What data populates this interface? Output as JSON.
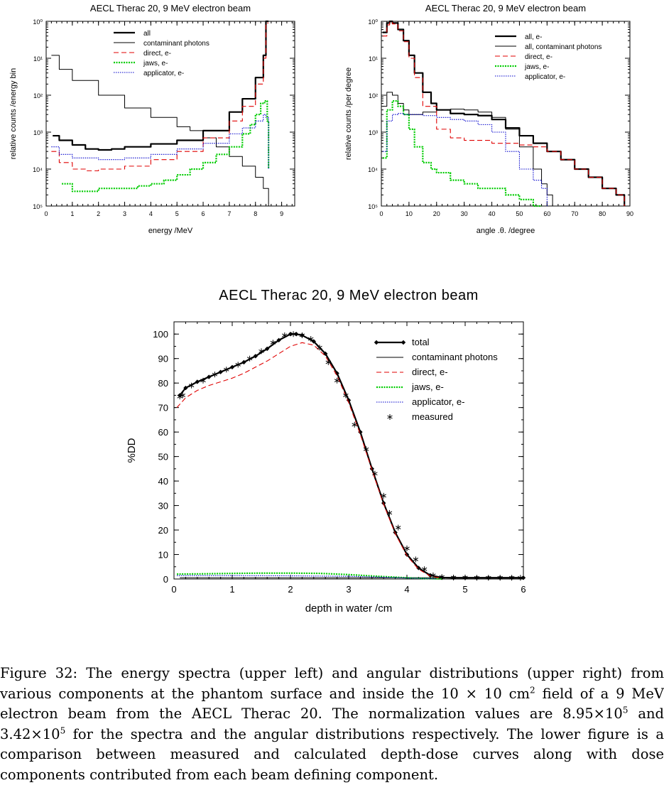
{
  "caption": {
    "label": "Figure 32:",
    "p1": "The energy spectra (upper left) and angular distributions (upper right) from various components at the phantom surface and inside the 10 × 10 cm",
    "p1_sup": "2",
    "p2": " field of a 9 MeV electron beam from the AECL Therac 20. The normalization values are 8.95×10",
    "p2_sup": "5",
    "p3": " and 3.42×10",
    "p3_sup": "5",
    "p4": " for the spectra and the angular distributions respectively. The lower figure is a comparison between measured and calculated depth-dose curves along with dose components contributed from each beam defining component."
  },
  "colors": {
    "all": "#000000",
    "contaminant": "#000000",
    "direct": "#e00000",
    "jaws": "#00cc00",
    "applicator": "#0000cc"
  },
  "chart_data": [
    {
      "type": "line",
      "title": "AECL Therac 20,  9 MeV electron beam",
      "xlabel": "energy /MeV",
      "ylabel": "relative counts /energy bin",
      "xlim": [
        0,
        9.5
      ],
      "ylim": [
        1e-05,
        1
      ],
      "yscale": "log",
      "xticks": [
        "0",
        "1",
        "2",
        "3",
        "4",
        "5",
        "6",
        "7",
        "8",
        "9"
      ],
      "yticks": [
        "10⁰",
        "10¹",
        "10²",
        "10³",
        "10⁴",
        "10⁵"
      ],
      "legend": {
        "placement": "top-right"
      },
      "series": [
        {
          "name": "all",
          "key": "all",
          "x": [
            0.25,
            0.5,
            1,
            1.5,
            2,
            2.5,
            3,
            4,
            5,
            6,
            7,
            7.5,
            8,
            8.3,
            8.4,
            8.5
          ],
          "y": [
            0.0008,
            0.0006,
            0.00045,
            0.00035,
            0.00033,
            0.00035,
            0.0004,
            0.00048,
            0.0006,
            0.0011,
            0.0035,
            0.008,
            0.03,
            0.12,
            1,
            1
          ]
        },
        {
          "name": "contaminant photons",
          "key": "contaminant",
          "x": [
            0.2,
            0.5,
            1,
            2,
            3,
            4,
            5,
            5.5,
            6,
            6.5,
            7,
            7.5,
            8,
            8.3,
            8.5
          ],
          "y": [
            0.12,
            0.05,
            0.025,
            0.01,
            0.0045,
            0.0025,
            0.0014,
            0.0011,
            0.0007,
            0.0004,
            0.00022,
            0.00012,
            6e-05,
            3e-05,
            1e-05
          ]
        },
        {
          "name": "direct, e-",
          "key": "direct",
          "x": [
            0.2,
            0.5,
            1,
            1.5,
            2,
            3,
            4,
            5,
            6,
            7,
            7.5,
            8,
            8.3,
            8.4,
            8.5
          ],
          "y": [
            0.0003,
            0.00015,
            0.0001,
            9e-05,
            0.0001,
            0.00012,
            0.00018,
            0.0003,
            0.0007,
            0.002,
            0.005,
            0.02,
            0.1,
            0.9,
            0.9
          ]
        },
        {
          "name": "jaws, e-",
          "key": "jaws",
          "x": [
            0.6,
            1,
            1.5,
            2,
            2.5,
            3,
            3.5,
            4,
            4.5,
            5,
            5.5,
            6,
            6.5,
            7,
            7.5,
            7.8,
            8,
            8.2,
            8.35,
            8.45,
            8.5
          ],
          "y": [
            4e-05,
            2.5e-05,
            2.5e-05,
            3e-05,
            3e-05,
            3e-05,
            3.5e-05,
            4e-05,
            5e-05,
            7e-05,
            0.0001,
            0.00015,
            0.00025,
            0.0004,
            0.0009,
            0.0016,
            0.003,
            0.006,
            0.007,
            0.002,
            0.0001
          ]
        },
        {
          "name": "applicator, e-",
          "key": "applicator",
          "x": [
            0.2,
            0.5,
            1,
            2,
            3,
            4,
            5,
            6,
            7,
            7.5,
            8,
            8.3,
            8.4,
            8.5
          ],
          "y": [
            0.0004,
            0.00025,
            0.0002,
            0.00018,
            0.0002,
            0.00025,
            0.00035,
            0.0005,
            0.0009,
            0.0013,
            0.002,
            0.003,
            0.0025,
            0.0001
          ]
        }
      ]
    },
    {
      "type": "line",
      "title": "AECL Therac 20, 9 MeV electron beam",
      "xlabel": "angle .θ. /degree",
      "ylabel": "relative counts /per degree",
      "xlim": [
        0,
        90
      ],
      "ylim": [
        1e-05,
        1
      ],
      "yscale": "log",
      "xticks": [
        "0",
        "10",
        "20",
        "30",
        "40",
        "50",
        "60",
        "70",
        "80",
        "90"
      ],
      "yticks": [
        "10⁰",
        "10¹",
        "10²",
        "10³",
        "10⁴",
        "10⁵"
      ],
      "legend": {
        "placement": "top-right"
      },
      "series": [
        {
          "name": "all, e-",
          "key": "all",
          "x": [
            0.5,
            2,
            3,
            4,
            6,
            8,
            10,
            12,
            15,
            18,
            20,
            25,
            30,
            35,
            40,
            45,
            50,
            55,
            60,
            65,
            70,
            75,
            80,
            85,
            88
          ],
          "y": [
            0.5,
            0.9,
            1,
            0.9,
            0.6,
            0.3,
            0.12,
            0.04,
            0.012,
            0.006,
            0.004,
            0.0032,
            0.003,
            0.0028,
            0.0022,
            0.0013,
            0.0008,
            0.0005,
            0.0003,
            0.00018,
            0.0001,
            6e-05,
            3e-05,
            2e-05,
            1e-05
          ]
        },
        {
          "name": "all, contaminant photons",
          "key": "contaminant",
          "x": [
            0.5,
            2,
            4,
            6,
            8,
            10,
            15,
            20,
            25,
            30,
            35,
            40,
            45,
            50,
            55,
            58,
            60,
            62
          ],
          "y": [
            0.005,
            0.012,
            0.01,
            0.006,
            0.004,
            0.003,
            0.0035,
            0.004,
            0.0042,
            0.004,
            0.0035,
            0.0025,
            0.0012,
            0.0004,
            0.0001,
            4e-05,
            2e-05,
            1e-05
          ]
        },
        {
          "name": "direct, e-",
          "key": "direct",
          "x": [
            0.5,
            2,
            3,
            4,
            6,
            8,
            10,
            12,
            15,
            20,
            25,
            30,
            40,
            50,
            55,
            60,
            65,
            70,
            75,
            80,
            85,
            88
          ],
          "y": [
            0.4,
            0.8,
            0.95,
            0.85,
            0.55,
            0.28,
            0.1,
            0.03,
            0.005,
            0.0012,
            0.0007,
            0.0006,
            0.0005,
            0.00045,
            0.0004,
            0.0003,
            0.00018,
            0.0001,
            6e-05,
            3e-05,
            2e-05,
            1e-05
          ]
        },
        {
          "name": "jaws, e-",
          "key": "jaws",
          "x": [
            0.5,
            2,
            4,
            6,
            8,
            10,
            12,
            15,
            18,
            20,
            25,
            30,
            35,
            40,
            45,
            50,
            55,
            58
          ],
          "y": [
            0.0002,
            0.004,
            0.007,
            0.005,
            0.003,
            0.0012,
            0.0004,
            0.00015,
            0.0001,
            8e-05,
            5e-05,
            4e-05,
            3e-05,
            3e-05,
            2e-05,
            1.5e-05,
            1e-05,
            1e-05
          ]
        },
        {
          "name": "applicator, e-",
          "key": "applicator",
          "x": [
            0.5,
            2,
            4,
            6,
            8,
            10,
            15,
            20,
            25,
            30,
            35,
            40,
            45,
            50,
            55,
            58,
            60
          ],
          "y": [
            0.0003,
            0.002,
            0.003,
            0.0032,
            0.003,
            0.003,
            0.0028,
            0.0025,
            0.0022,
            0.002,
            0.0016,
            0.001,
            0.0003,
            0.0001,
            5e-05,
            3e-05,
            1e-05
          ]
        }
      ]
    },
    {
      "type": "line",
      "title": "AECL Therac 20, 9 MeV electron beam",
      "xlabel": "depth in water /cm",
      "ylabel": "%DD",
      "xlim": [
        0,
        6
      ],
      "ylim": [
        0,
        105
      ],
      "xticks": [
        "0",
        "1",
        "2",
        "3",
        "4",
        "5",
        "6"
      ],
      "yticks": [
        "0",
        "10",
        "20",
        "30",
        "40",
        "50",
        "60",
        "70",
        "80",
        "90",
        "100"
      ],
      "legend": {
        "placement": "top-right"
      },
      "series": [
        {
          "name": "total",
          "key": "all",
          "x": [
            0.1,
            0.2,
            0.4,
            0.6,
            0.8,
            1.0,
            1.2,
            1.4,
            1.6,
            1.8,
            2.0,
            2.1,
            2.2,
            2.4,
            2.6,
            2.8,
            3.0,
            3.2,
            3.4,
            3.6,
            3.8,
            4.0,
            4.2,
            4.4,
            4.6,
            4.8,
            5.0,
            5.2,
            5.4,
            5.6,
            5.8,
            6.0
          ],
          "y": [
            75,
            78,
            80.5,
            82.5,
            84.5,
            86.5,
            88.5,
            91,
            94,
            97.5,
            100,
            100,
            99.5,
            97,
            92,
            84,
            73,
            60,
            45,
            31,
            19,
            10,
            4.5,
            1.5,
            0.6,
            0.5,
            0.5,
            0.5,
            0.5,
            0.5,
            0.5,
            0.5
          ]
        },
        {
          "name": "contaminant photons",
          "key": "contaminant",
          "x": [
            0.1,
            1,
            2,
            3,
            4,
            4.5,
            5,
            6
          ],
          "y": [
            0.5,
            0.5,
            0.5,
            0.5,
            0.5,
            0.5,
            0.5,
            0.5
          ]
        },
        {
          "name": "direct, e-",
          "key": "direct",
          "x": [
            0.05,
            0.2,
            0.4,
            0.6,
            0.8,
            1.0,
            1.2,
            1.4,
            1.6,
            1.8,
            2.0,
            2.2,
            2.4,
            2.6,
            2.8,
            3.0,
            3.2,
            3.4,
            3.6,
            3.8,
            4.0,
            4.2,
            4.4,
            4.6
          ],
          "y": [
            70,
            74,
            77,
            79,
            80.5,
            82,
            84,
            86.5,
            89,
            92,
            95,
            96.5,
            95.5,
            91,
            83,
            72,
            59,
            44.5,
            30.5,
            18.5,
            9.5,
            4,
            1.2,
            0.3
          ]
        },
        {
          "name": "jaws, e-",
          "key": "jaws",
          "x": [
            0.05,
            0.5,
            1.0,
            1.5,
            2.0,
            2.5,
            3.0,
            3.5,
            4.0,
            4.3,
            4.6
          ],
          "y": [
            2,
            2.1,
            2.3,
            2.4,
            2.4,
            2.3,
            1.8,
            1.1,
            0.5,
            0.2,
            0.05
          ]
        },
        {
          "name": "applicator, e-",
          "key": "applicator",
          "x": [
            0.05,
            1,
            2,
            3,
            3.5,
            4,
            4.5
          ],
          "y": [
            1.4,
            1.4,
            1.3,
            1.1,
            0.8,
            0.4,
            0.1
          ]
        },
        {
          "name": "measured",
          "key": "measured",
          "markers_only": true,
          "x": [
            0.1,
            0.15,
            0.3,
            0.5,
            0.7,
            0.9,
            1.1,
            1.3,
            1.5,
            1.7,
            1.9,
            2.05,
            2.2,
            2.35,
            2.5,
            2.65,
            2.8,
            2.95,
            3.1,
            3.3,
            3.45,
            3.6,
            3.7,
            3.85,
            4.0,
            4.15,
            4.3,
            4.45,
            4.6,
            4.8,
            5.0,
            5.2,
            5.4,
            5.6,
            5.8,
            5.95
          ],
          "y": [
            74.5,
            75,
            79,
            81,
            83.5,
            85.5,
            87.5,
            90,
            93,
            96.5,
            99.5,
            100,
            99.5,
            98,
            94.5,
            88.5,
            81,
            75,
            63,
            53,
            43,
            34,
            27,
            21,
            12.5,
            8,
            4,
            1.5,
            0.8,
            0.6,
            0.6,
            0.5,
            0.5,
            0.5,
            0.5,
            0.5
          ]
        }
      ]
    }
  ]
}
